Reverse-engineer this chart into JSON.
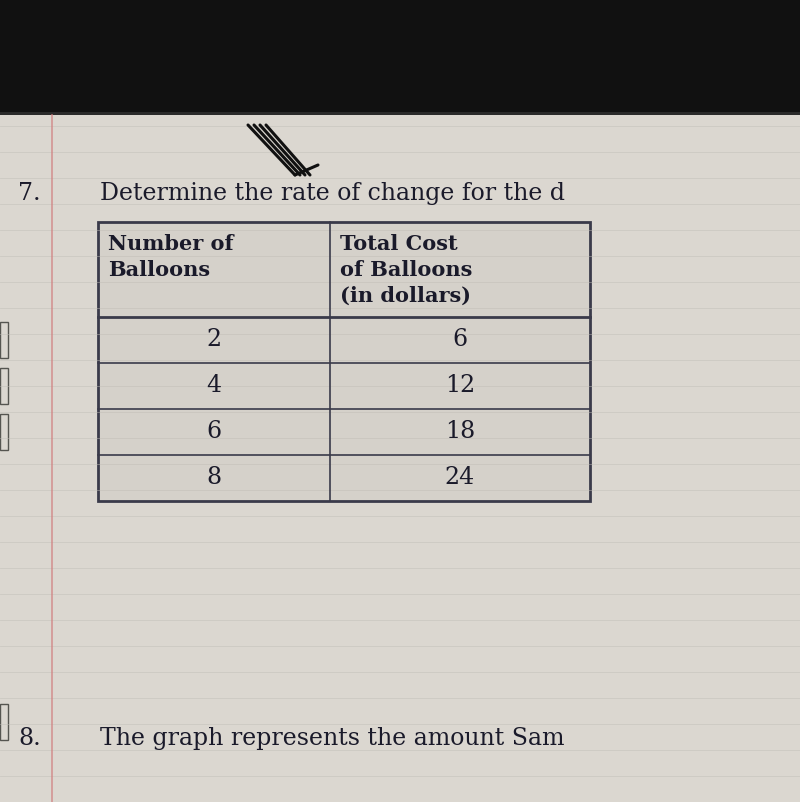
{
  "question_number": "7.",
  "question_text": "Determine the rate of change for the d",
  "col1_header_line1": "Number of",
  "col1_header_line2": "Balloons",
  "col2_header_line1": "Total Cost",
  "col2_header_line2": "of Balloons",
  "col2_header_line3": "(in dollars)",
  "col1_data": [
    "2",
    "4",
    "6",
    "8"
  ],
  "col2_data": [
    "6",
    "12",
    "18",
    "24"
  ],
  "next_question_number": "8.",
  "next_question_text": "The graph represents the amount Sam",
  "border_color": "#3a3a4a",
  "text_color": "#1a1a2a",
  "dark_top": "#111111",
  "page_bg": "#dbd7d0",
  "table_bg": "#ccc9c2",
  "grid_line_color": "#c0bdb6",
  "margin_line_color": "#d08080",
  "tab_color": "#888880"
}
